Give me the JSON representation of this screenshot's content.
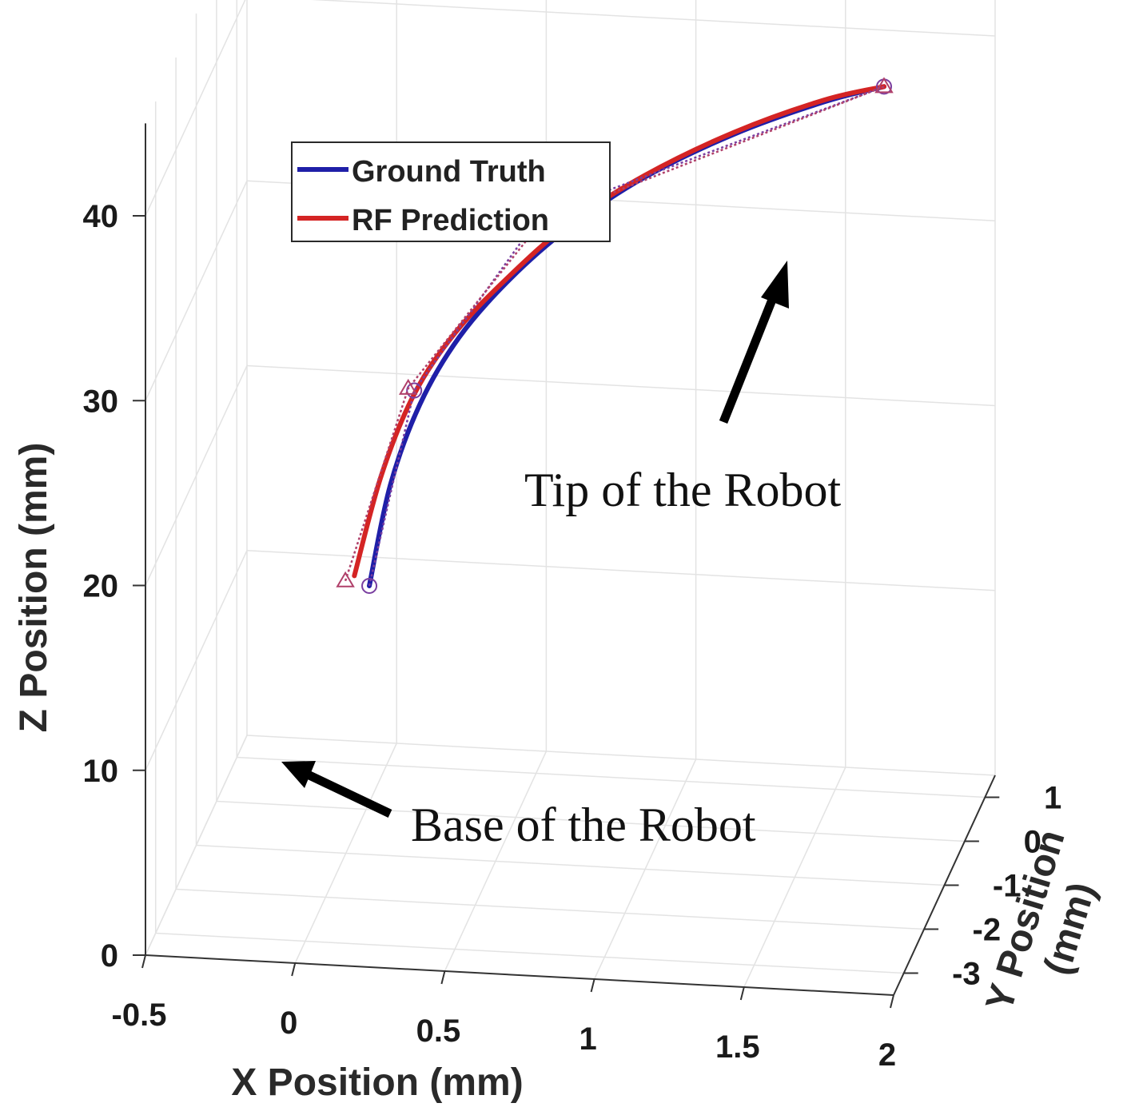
{
  "chart_data": {
    "type": "line",
    "xlabel": "X Position (mm)",
    "ylabel": "Y Position (mm)",
    "zlabel": "Z Position (mm)",
    "x_ticks": [
      "-0.5",
      "0",
      "0.5",
      "1",
      "1.5",
      "2"
    ],
    "y_ticks": [
      "-3",
      "-2",
      "-1",
      "0",
      "1"
    ],
    "z_ticks": [
      "0",
      "10",
      "20",
      "30",
      "40"
    ],
    "xlim": [
      -0.5,
      2
    ],
    "ylim": [
      -3.5,
      1.5
    ],
    "zlim": [
      0,
      45
    ],
    "grid": true,
    "legend_position": "top-left",
    "series": [
      {
        "name": "Ground Truth",
        "color": "#1f1fa8",
        "style": "solid",
        "x": [
          -0.02,
          0.05,
          0.15,
          0.28,
          0.45,
          0.65,
          0.9,
          1.2,
          1.5,
          1.7
        ],
        "y": [
          0.45,
          0.45,
          0.45,
          0.45,
          0.45,
          0.45,
          0.45,
          0.45,
          0.45,
          0.45
        ],
        "z": [
          11.0,
          16.5,
          21.0,
          24.7,
          28.0,
          31.0,
          33.9,
          36.5,
          38.5,
          39.5
        ]
      },
      {
        "name": "RF Prediction",
        "color": "#d42424",
        "style": "solid",
        "x": [
          -0.07,
          0.02,
          0.13,
          0.27,
          0.45,
          0.65,
          0.9,
          1.2,
          1.5,
          1.7
        ],
        "y": [
          0.45,
          0.45,
          0.45,
          0.45,
          0.45,
          0.45,
          0.45,
          0.45,
          0.45,
          0.45
        ],
        "z": [
          11.5,
          17.0,
          21.5,
          25.0,
          28.2,
          31.2,
          34.0,
          36.6,
          38.6,
          39.5
        ]
      },
      {
        "name": "",
        "color": "#7a3fa0",
        "style": "dotted",
        "marker": "circle",
        "x": [
          -0.02,
          0.13,
          0.55,
          1.7
        ],
        "y": [
          0.45,
          0.45,
          0.45,
          0.45
        ],
        "z": [
          11.0,
          21.7,
          31.5,
          39.5
        ]
      },
      {
        "name": "",
        "color": "#b0406a",
        "style": "dotted",
        "marker": "triangle",
        "x": [
          -0.1,
          0.11,
          0.56,
          1.7
        ],
        "y": [
          0.45,
          0.45,
          0.45,
          0.45
        ],
        "z": [
          11.2,
          21.8,
          31.3,
          39.5
        ]
      }
    ],
    "annotations": [
      {
        "text": "Tip of the Robot",
        "target": "tip"
      },
      {
        "text": "Base of the Robot",
        "target": "base"
      }
    ]
  }
}
